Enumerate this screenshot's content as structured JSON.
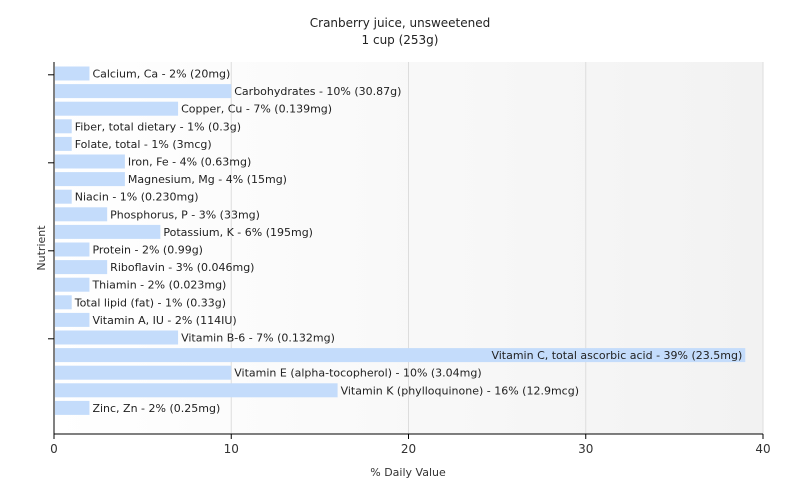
{
  "colors": {
    "bar": "#c4dcfb",
    "axis": "#000000",
    "grid": "#dddddd",
    "plot_gradient_start": "#ffffff",
    "plot_gradient_end": "#f2f2f2"
  },
  "chart_data": {
    "type": "bar",
    "orientation": "horizontal",
    "title": "Cranberry juice, unsweetened",
    "subtitle": "1 cup (253g)",
    "xlabel": "% Daily Value",
    "ylabel": "Nutrient",
    "xlim": [
      0,
      40
    ],
    "xticks": [
      0,
      10,
      20,
      30,
      40
    ],
    "grid": true,
    "categories": [
      "Calcium, Ca",
      "Carbohydrates",
      "Copper, Cu",
      "Fiber, total dietary",
      "Folate, total",
      "Iron, Fe",
      "Magnesium, Mg",
      "Niacin",
      "Phosphorus, P",
      "Potassium, K",
      "Protein",
      "Riboflavin",
      "Thiamin",
      "Total lipid (fat)",
      "Vitamin A, IU",
      "Vitamin B-6",
      "Vitamin C, total ascorbic acid",
      "Vitamin E (alpha-tocopherol)",
      "Vitamin K (phylloquinone)",
      "Zinc, Zn"
    ],
    "values": [
      2,
      10,
      7,
      1,
      1,
      4,
      4,
      1,
      3,
      6,
      2,
      3,
      2,
      1,
      2,
      7,
      39,
      10,
      16,
      2
    ],
    "labels": [
      "Calcium, Ca - 2% (20mg)",
      "Carbohydrates - 10% (30.87g)",
      "Copper, Cu - 7% (0.139mg)",
      "Fiber, total dietary - 1% (0.3g)",
      "Folate, total - 1% (3mcg)",
      "Iron, Fe - 4% (0.63mg)",
      "Magnesium, Mg - 4% (15mg)",
      "Niacin - 1% (0.230mg)",
      "Phosphorus, P - 3% (33mg)",
      "Potassium, K - 6% (195mg)",
      "Protein - 2% (0.99g)",
      "Riboflavin - 3% (0.046mg)",
      "Thiamin - 2% (0.023mg)",
      "Total lipid (fat) - 1% (0.33g)",
      "Vitamin A, IU - 2% (114IU)",
      "Vitamin B-6 - 7% (0.132mg)",
      "Vitamin C, total ascorbic acid - 39% (23.5mg)",
      "Vitamin E (alpha-tocopherol) - 10% (3.04mg)",
      "Vitamin K (phylloquinone) - 16% (12.9mcg)",
      "Zinc, Zn - 2% (0.25mg)"
    ]
  }
}
